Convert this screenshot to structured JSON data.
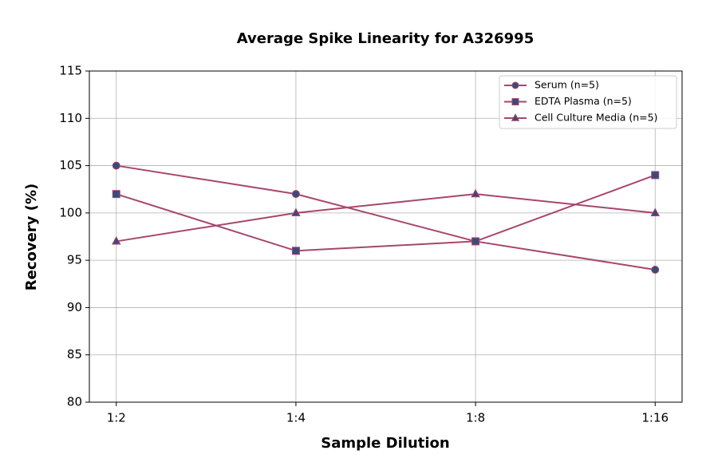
{
  "chart_data": {
    "type": "line",
    "title": "Average Spike Linearity for A326995",
    "xlabel": "Sample Dilution",
    "ylabel": "Recovery (%)",
    "categories": [
      "1:2",
      "1:4",
      "1:8",
      "1:16"
    ],
    "series": [
      {
        "name": "Serum (n=5)",
        "color": "#a8466b",
        "marker_color": "#3b4a7c",
        "marker": "circle",
        "values": [
          105,
          102,
          97,
          94
        ]
      },
      {
        "name": "EDTA Plasma (n=5)",
        "color": "#a8466b",
        "marker_color": "#3b4a7c",
        "marker": "square",
        "values": [
          102,
          96,
          97,
          104
        ]
      },
      {
        "name": "Cell Culture Media (n=5)",
        "color": "#a8466b",
        "marker_color": "#3b4a7c",
        "marker": "triangle",
        "values": [
          97,
          100,
          102,
          100
        ]
      }
    ],
    "ylim": [
      80,
      115
    ],
    "yticks": [
      80,
      85,
      90,
      95,
      100,
      105,
      110,
      115
    ],
    "grid": true,
    "legend": "upper right"
  }
}
